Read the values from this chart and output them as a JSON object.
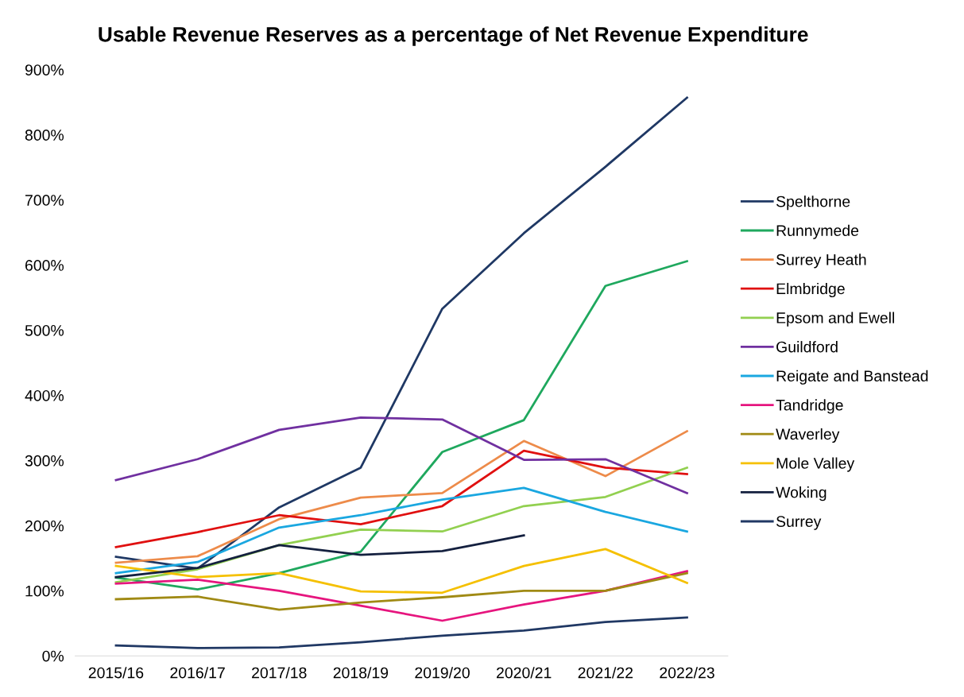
{
  "chart_data": {
    "type": "line",
    "title": "Usable Revenue Reserves as a percentage of Net Revenue Expenditure",
    "categories": [
      "2015/16",
      "2016/17",
      "2017/18",
      "2018/19",
      "2019/20",
      "2020/21",
      "2021/22",
      "2022/23"
    ],
    "ylim": [
      0,
      900
    ],
    "yticks": [
      {
        "value": 0,
        "label": "0%"
      },
      {
        "value": 100,
        "label": "100%"
      },
      {
        "value": 200,
        "label": "200%"
      },
      {
        "value": 300,
        "label": "300%"
      },
      {
        "value": 400,
        "label": "400%"
      },
      {
        "value": 500,
        "label": "500%"
      },
      {
        "value": 600,
        "label": "600%"
      },
      {
        "value": 700,
        "label": "700%"
      },
      {
        "value": 800,
        "label": "800%"
      },
      {
        "value": 900,
        "label": "900%"
      }
    ],
    "grid": false,
    "legend": "right",
    "marker": "none",
    "line_style": "solid",
    "series": [
      {
        "name": "Spelthorne",
        "color": "#1f3864",
        "values": [
          152,
          134,
          228,
          289,
          533,
          649,
          751,
          857
        ]
      },
      {
        "name": "Runnymede",
        "color": "#1fa85e",
        "values": [
          120,
          102,
          127,
          160,
          313,
          362,
          568,
          606
        ]
      },
      {
        "name": "Surrey Heath",
        "color": "#ed8b4a",
        "values": [
          143,
          153,
          210,
          243,
          250,
          330,
          276,
          345
        ]
      },
      {
        "name": "Elmbridge",
        "color": "#e01010",
        "values": [
          167,
          190,
          216,
          202,
          230,
          315,
          289,
          279
        ]
      },
      {
        "name": "Epsom and Ewell",
        "color": "#92d050",
        "values": [
          113,
          133,
          170,
          194,
          191,
          230,
          244,
          289
        ]
      },
      {
        "name": "Guildford",
        "color": "#7030a0",
        "values": [
          270,
          302,
          347,
          366,
          363,
          301,
          302,
          250
        ]
      },
      {
        "name": "Reigate and Banstead",
        "color": "#1aa7e0",
        "values": [
          127,
          144,
          197,
          216,
          240,
          258,
          221,
          191
        ]
      },
      {
        "name": "Tandridge",
        "color": "#e6157e",
        "values": [
          111,
          117,
          100,
          77,
          54,
          79,
          100,
          130
        ]
      },
      {
        "name": "Waverley",
        "color": "#a08a14",
        "values": [
          87,
          91,
          71,
          82,
          90,
          100,
          100,
          127
        ]
      },
      {
        "name": "Mole Valley",
        "color": "#f5c000",
        "values": [
          138,
          121,
          127,
          99,
          97,
          138,
          164,
          112
        ]
      },
      {
        "name": "Woking",
        "color": "#14203f",
        "values": [
          121,
          135,
          170,
          155,
          161,
          185,
          null,
          null
        ]
      },
      {
        "name": "Surrey",
        "color": "#203864",
        "values": [
          16,
          12,
          13,
          21,
          31,
          39,
          52,
          59
        ]
      }
    ]
  }
}
